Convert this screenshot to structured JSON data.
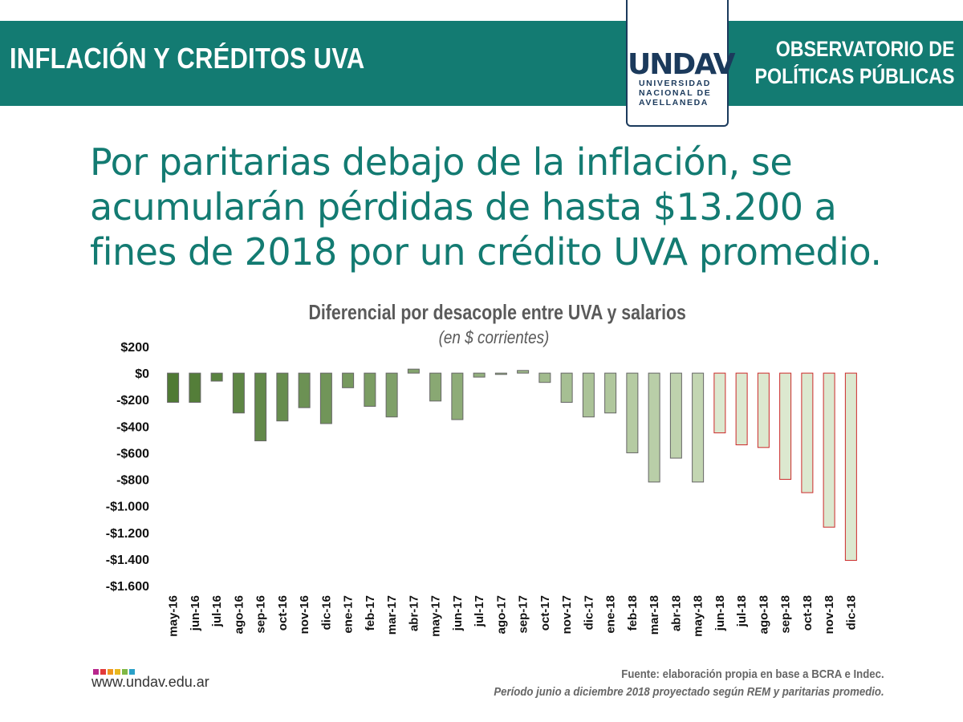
{
  "header": {
    "title": "INFLACIÓN Y CRÉDITOS UVA",
    "observatorio": [
      "OBSERVATORIO DE",
      "POLÍTICAS PÚBLICAS"
    ]
  },
  "logo": {
    "mark": "UNDAV",
    "lines": [
      "UNIVERSIDAD",
      "NACIONAL DE",
      "AVELLANEDA"
    ]
  },
  "headline": [
    "Por paritarias debajo de la inflación, se",
    "acumularán pérdidas de hasta $13.200 a",
    "fines de 2018 por un crédito UVA promedio."
  ],
  "chart_data": {
    "type": "bar",
    "title": "Diferencial por desacople entre UVA y salarios",
    "subtitle": "(en $ corrientes)",
    "xlabel": "",
    "ylabel": "",
    "ylim": [
      -1600,
      200
    ],
    "yticks": [
      200,
      0,
      -200,
      -400,
      -600,
      -800,
      -1000,
      -1200,
      -1400,
      -1600
    ],
    "ytick_labels": [
      "$200",
      "$0",
      "-$200",
      "-$400",
      "-$600",
      "-$800",
      "-$1.000",
      "-$1.200",
      "-$1.400",
      "-$1.600"
    ],
    "categories": [
      "may-16",
      "jun-16",
      "jul-16",
      "ago-16",
      "sep-16",
      "oct-16",
      "nov-16",
      "dic-16",
      "ene-17",
      "feb-17",
      "mar-17",
      "abr-17",
      "may-17",
      "jun-17",
      "jul-17",
      "ago-17",
      "sep-17",
      "oct-17",
      "nov-17",
      "dic-17",
      "ene-18",
      "feb-18",
      "mar-18",
      "abr-18",
      "may-18",
      "jun-18",
      "jul-18",
      "ago-18",
      "sep-18",
      "oct-18",
      "nov-18",
      "dic-18"
    ],
    "values": [
      -220,
      -220,
      -60,
      -300,
      -510,
      -360,
      -260,
      -380,
      -110,
      -250,
      -330,
      30,
      -210,
      -350,
      -30,
      -10,
      20,
      -70,
      -220,
      -330,
      -300,
      -600,
      -820,
      -640,
      -820,
      -450,
      -540,
      -560,
      -800,
      -900,
      -1160,
      -1410
    ],
    "projected_from": "jun-18",
    "grid": false,
    "colors": {
      "historic_start": "#4f7a34",
      "historic_end": "#c3d6b2",
      "projected_fill": "#dce8cf",
      "projected_stroke": "#cc2a2a",
      "bar_stroke": "#666666"
    }
  },
  "footer": {
    "dot_colors": [
      "#b8268c",
      "#e23a3a",
      "#f0961e",
      "#e8b81e",
      "#7fb845",
      "#2aa0c8"
    ],
    "website": "www.undav.edu.ar",
    "source_line1": "Fuente: elaboración propia en base a BCRA e Indec.",
    "source_line2": "Período junio a diciembre 2018 proyectado según REM y paritarias promedio."
  }
}
